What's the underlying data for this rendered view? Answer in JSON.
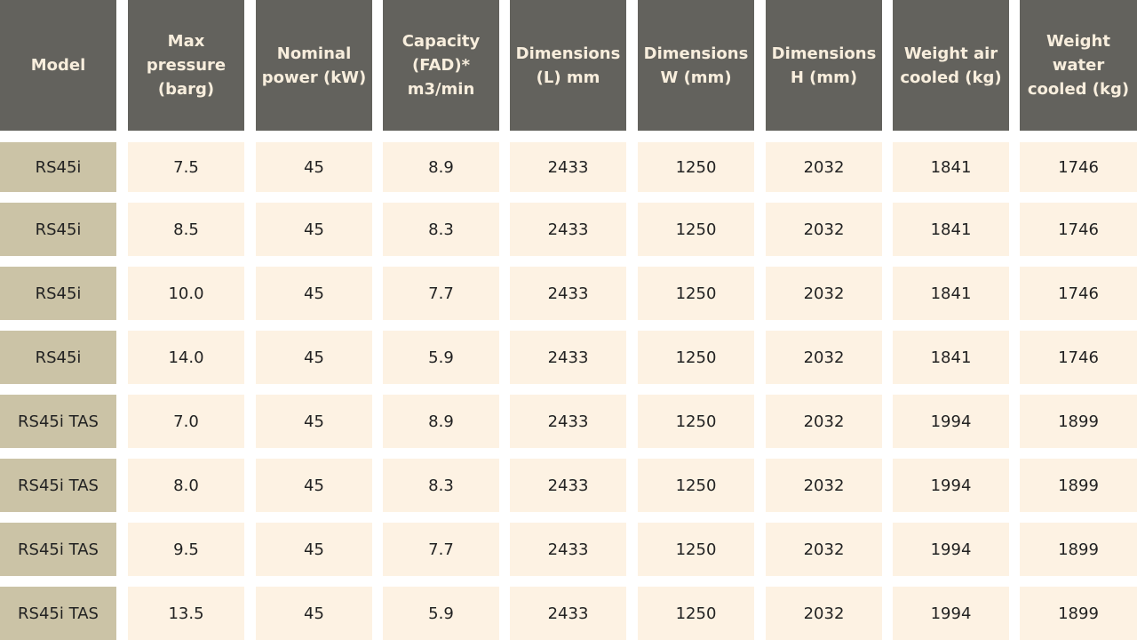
{
  "table": {
    "headers": [
      "Model",
      "Max pressure (barg)",
      "Nominal power (kW)",
      "Capacity (FAD)* m3/min",
      "Dimensions (L) mm",
      "Dimensions W (mm)",
      "Dimensions H (mm)",
      "Weight air cooled (kg)",
      "Weight water cooled (kg)"
    ],
    "rows": [
      [
        "RS45i",
        "7.5",
        "45",
        "8.9",
        "2433",
        "1250",
        "2032",
        "1841",
        "1746"
      ],
      [
        "RS45i",
        "8.5",
        "45",
        "8.3",
        "2433",
        "1250",
        "2032",
        "1841",
        "1746"
      ],
      [
        "RS45i",
        "10.0",
        "45",
        "7.7",
        "2433",
        "1250",
        "2032",
        "1841",
        "1746"
      ],
      [
        "RS45i",
        "14.0",
        "45",
        "5.9",
        "2433",
        "1250",
        "2032",
        "1841",
        "1746"
      ],
      [
        "RS45i TAS",
        "7.0",
        "45",
        "8.9",
        "2433",
        "1250",
        "2032",
        "1994",
        "1899"
      ],
      [
        "RS45i TAS",
        "8.0",
        "45",
        "8.3",
        "2433",
        "1250",
        "2032",
        "1994",
        "1899"
      ],
      [
        "RS45i TAS",
        "9.5",
        "45",
        "7.7",
        "2433",
        "1250",
        "2032",
        "1994",
        "1899"
      ],
      [
        "RS45i TAS",
        "13.5",
        "45",
        "5.9",
        "2433",
        "1250",
        "2032",
        "1994",
        "1899"
      ]
    ]
  }
}
